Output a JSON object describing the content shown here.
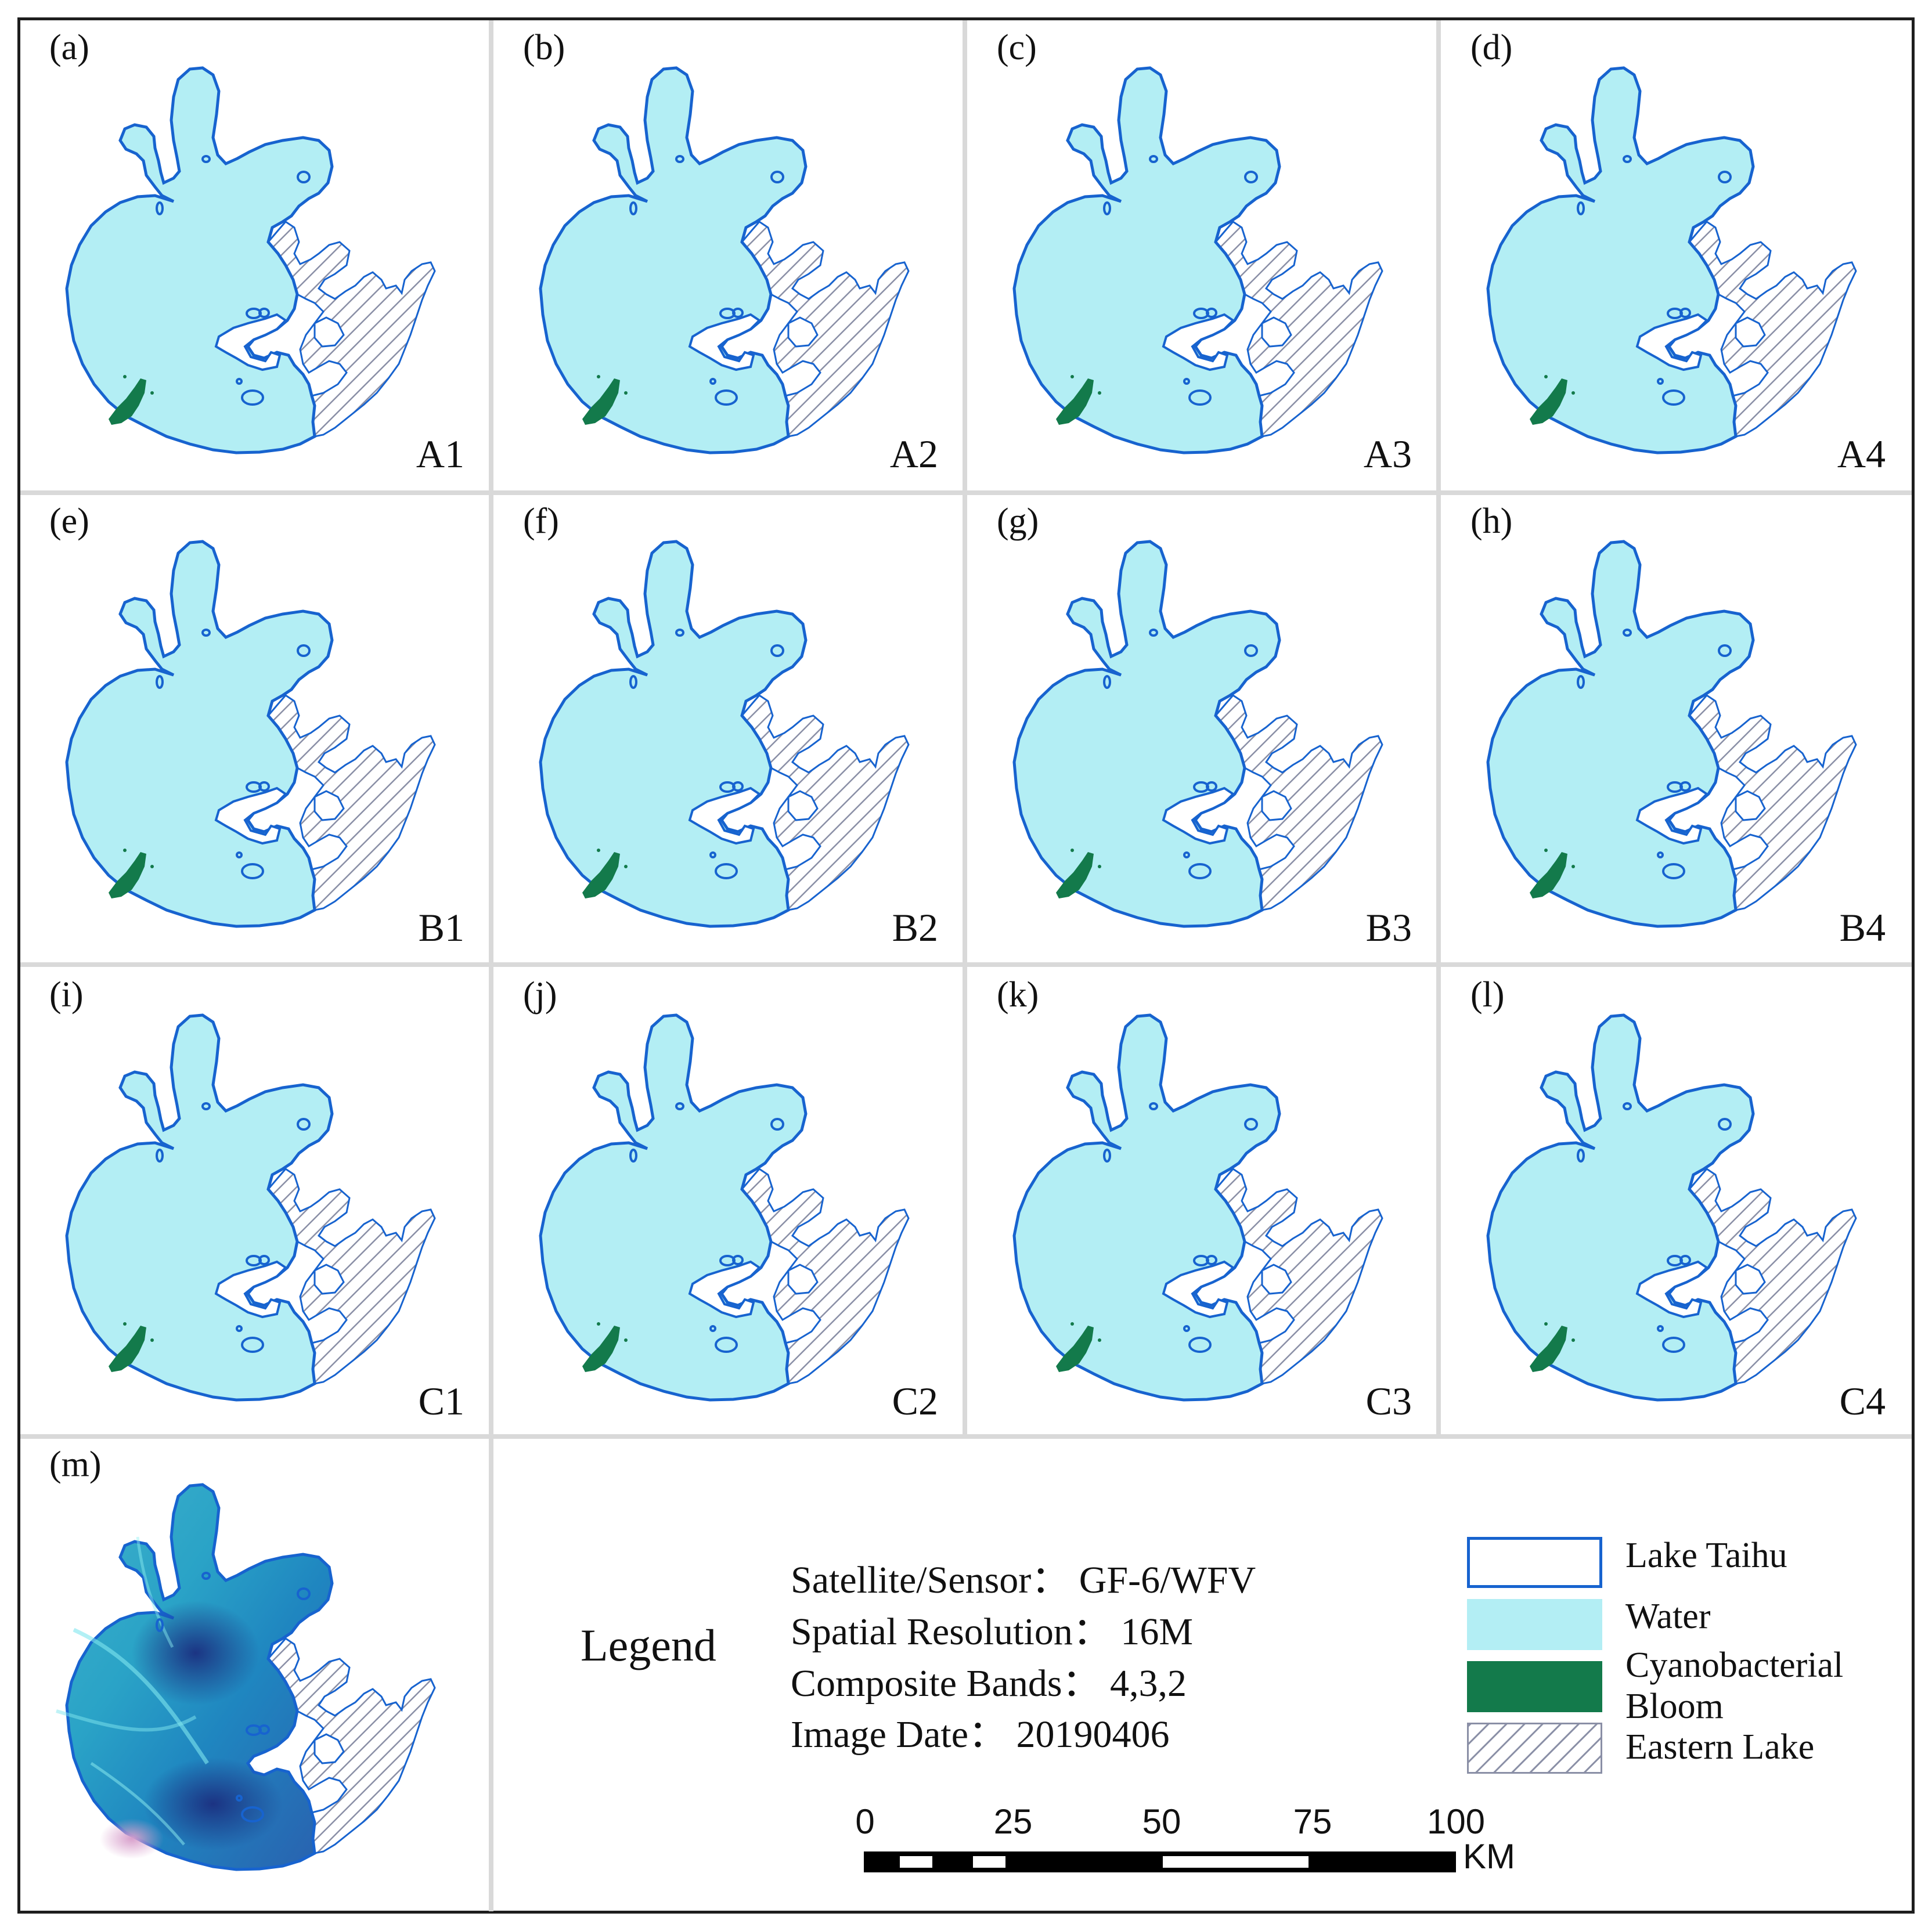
{
  "colors": {
    "water": "#b3eef4",
    "bloom": "#137a4b",
    "outline": "#1763cf",
    "hatch": "#8a8fa6",
    "grid": "#d9d9d9"
  },
  "panels": [
    {
      "letter": "(a)",
      "code": "A1"
    },
    {
      "letter": "(b)",
      "code": "A2"
    },
    {
      "letter": "(c)",
      "code": "A3"
    },
    {
      "letter": "(d)",
      "code": "A4"
    },
    {
      "letter": "(e)",
      "code": "B1"
    },
    {
      "letter": "(f)",
      "code": "B2"
    },
    {
      "letter": "(g)",
      "code": "B3"
    },
    {
      "letter": "(h)",
      "code": "B4"
    },
    {
      "letter": "(i)",
      "code": "C1"
    },
    {
      "letter": "(j)",
      "code": "C2"
    },
    {
      "letter": "(k)",
      "code": "C3"
    },
    {
      "letter": "(l)",
      "code": "C4"
    }
  ],
  "image_panel": {
    "letter": "(m)"
  },
  "legend": {
    "title": "Legend",
    "info": [
      "Satellite/Sensor：  GF-6/WFV",
      "Spatial Resolution：  16M",
      "Composite Bands：  4,3,2",
      "Image Date：  20190406"
    ],
    "items": [
      {
        "label": "Lake Taihu",
        "kind": "outline"
      },
      {
        "label": "Water",
        "kind": "water"
      },
      {
        "label": "Cyanobacterial",
        "label2": "Bloom",
        "kind": "bloom"
      },
      {
        "label": "Eastern Lake",
        "kind": "hatch"
      }
    ]
  },
  "scale_bar": {
    "ticks": [
      "0",
      "25",
      "50",
      "75",
      "100"
    ],
    "unit": "KM"
  }
}
